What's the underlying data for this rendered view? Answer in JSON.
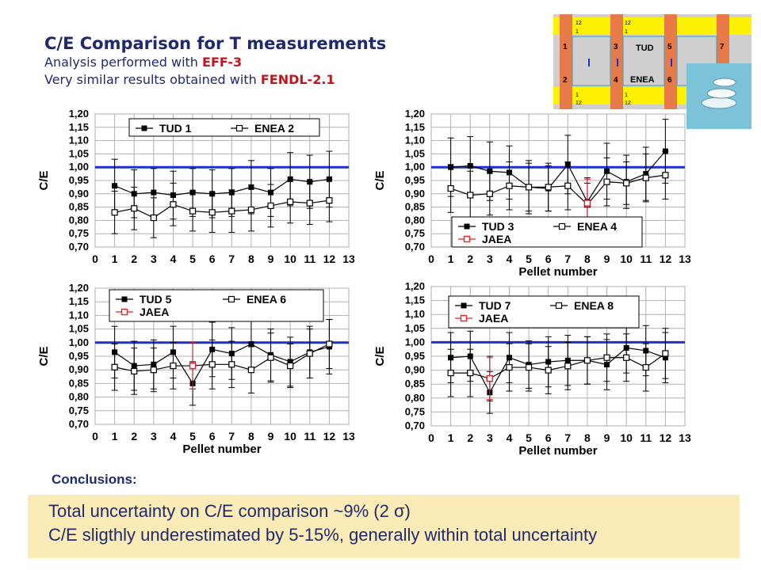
{
  "header": {
    "title": "C/E Comparison for T measurements",
    "line1_prefix": "Analysis performed with ",
    "line1_highlight": "EFF-3",
    "line2_prefix": "Very similar results obtained with  ",
    "line2_highlight": "FENDL-2.1"
  },
  "decoration": {
    "grid_numbers": [
      "12",
      "1",
      "12",
      "1",
      "1",
      "3",
      "5",
      "7",
      "2",
      "4",
      "6",
      "1",
      "12",
      "1",
      "12"
    ],
    "tud_label": "TUD",
    "enea_label": "ENEA",
    "colors": {
      "yellow": "#fff200",
      "orange": "#e87a4a",
      "gray": "#cfcfcf",
      "teal": "#2fa4c0"
    }
  },
  "conclusions": {
    "title": "Conclusions:",
    "line1": "Total uncertainty on C/E comparison ~9% (2 σ)",
    "line2": "C/E sligthly underestimated by 5-15%, generally within total uncertainty"
  },
  "colors": {
    "reference_line": "#1d2fd6",
    "jaea": "#e8242e",
    "series": "#000000",
    "title": "#1f2a6e",
    "highlight": "#c0151c",
    "box": "#fbecb7"
  },
  "chart_data": [
    {
      "type": "line",
      "ylabel": "C/E",
      "xlabel": "",
      "ylim": [
        0.7,
        1.2
      ],
      "xlim": [
        0,
        13
      ],
      "yticks": [
        "0,70",
        "0,75",
        "0,80",
        "0,85",
        "0,90",
        "0,95",
        "1,00",
        "1,05",
        "1,10",
        "1,15",
        "1,20"
      ],
      "xticks": [
        "0",
        "1",
        "2",
        "3",
        "4",
        "5",
        "6",
        "7",
        "8",
        "9",
        "10",
        "11",
        "12",
        "13"
      ],
      "reference_y": 1.0,
      "legend_position": "top",
      "series": [
        {
          "name": "TUD 1",
          "marker": "filled-square",
          "x": [
            1,
            2,
            3,
            4,
            5,
            6,
            7,
            8,
            9,
            10,
            11,
            12
          ],
          "y": [
            0.93,
            0.9,
            0.905,
            0.895,
            0.905,
            0.9,
            0.905,
            0.925,
            0.905,
            0.955,
            0.945,
            0.955
          ],
          "err": [
            0.1,
            0.09,
            0.09,
            0.09,
            0.09,
            0.09,
            0.09,
            0.1,
            0.09,
            0.1,
            0.1,
            0.105
          ]
        },
        {
          "name": "ENEA 2",
          "marker": "open-square",
          "x": [
            1,
            2,
            3,
            4,
            5,
            6,
            7,
            8,
            9,
            10,
            11,
            12
          ],
          "y": [
            0.83,
            0.845,
            0.81,
            0.86,
            0.835,
            0.83,
            0.835,
            0.84,
            0.855,
            0.87,
            0.865,
            0.875
          ],
          "err": [
            0.08,
            0.08,
            0.075,
            0.08,
            0.075,
            0.075,
            0.08,
            0.08,
            0.08,
            0.08,
            0.08,
            0.08
          ]
        }
      ]
    },
    {
      "type": "line",
      "ylabel": "C/E",
      "xlabel": "Pellet number",
      "ylim": [
        0.7,
        1.2
      ],
      "xlim": [
        0,
        13
      ],
      "yticks": [
        "0,70",
        "0,75",
        "0,80",
        "0,85",
        "0,90",
        "0,95",
        "1,00",
        "1,05",
        "1,10",
        "1,15",
        "1,20"
      ],
      "xticks": [
        "0",
        "1",
        "2",
        "3",
        "4",
        "5",
        "6",
        "7",
        "8",
        "9",
        "10",
        "11",
        "12",
        "13"
      ],
      "reference_y": 1.0,
      "legend_position": "bottom",
      "series": [
        {
          "name": "TUD 3",
          "marker": "filled-square",
          "x": [
            1,
            2,
            3,
            4,
            5,
            6,
            7,
            8,
            9,
            10,
            11,
            12
          ],
          "y": [
            1.0,
            1.005,
            0.985,
            0.98,
            0.925,
            0.92,
            1.01,
            0.87,
            0.985,
            0.945,
            0.975,
            1.06
          ],
          "err": [
            0.11,
            0.11,
            0.11,
            0.1,
            0.1,
            0.085,
            0.11,
            0.09,
            0.105,
            0.1,
            0.1,
            0.12
          ]
        },
        {
          "name": "ENEA 4",
          "marker": "open-square",
          "x": [
            1,
            2,
            3,
            4,
            5,
            6,
            7,
            8,
            9,
            10,
            11,
            12
          ],
          "y": [
            0.92,
            0.895,
            0.9,
            0.93,
            0.925,
            0.925,
            0.93,
            0.86,
            0.945,
            0.94,
            0.96,
            0.97
          ],
          "err": [
            0.09,
            0.09,
            0.08,
            0.09,
            0.09,
            0.09,
            0.09,
            0.08,
            0.09,
            0.08,
            0.09,
            0.09
          ]
        },
        {
          "name": "JAEA",
          "marker": "red-open-square",
          "x": [
            8
          ],
          "y": [
            0.865
          ],
          "err": [
            0.09
          ]
        }
      ]
    },
    {
      "type": "line",
      "ylabel": "C/E",
      "xlabel": "Pellet number",
      "ylim": [
        0.7,
        1.2
      ],
      "xlim": [
        0,
        13
      ],
      "yticks": [
        "0,70",
        "0,75",
        "0,80",
        "0,85",
        "0,90",
        "0,95",
        "1,00",
        "1,05",
        "1,10",
        "1,15",
        "1,20"
      ],
      "xticks": [
        "0",
        "1",
        "2",
        "3",
        "4",
        "5",
        "6",
        "7",
        "8",
        "9",
        "10",
        "11",
        "12",
        "13"
      ],
      "reference_y": 1.0,
      "legend_position": "top",
      "series": [
        {
          "name": "TUD 5",
          "marker": "filled-square",
          "x": [
            1,
            2,
            3,
            4,
            5,
            6,
            7,
            8,
            9,
            10,
            11,
            12
          ],
          "y": [
            0.965,
            0.915,
            0.92,
            0.965,
            0.85,
            0.975,
            0.96,
            0.995,
            0.955,
            0.93,
            0.965,
            0.985
          ],
          "err": [
            0.095,
            0.09,
            0.09,
            0.095,
            0.08,
            0.1,
            0.095,
            0.1,
            0.095,
            0.09,
            0.095,
            0.1
          ]
        },
        {
          "name": "ENEA 6",
          "marker": "open-square",
          "x": [
            1,
            2,
            3,
            4,
            5,
            6,
            7,
            8,
            9,
            10,
            11,
            12
          ],
          "y": [
            0.91,
            0.895,
            0.9,
            0.915,
            0.915,
            0.92,
            0.92,
            0.9,
            0.945,
            0.915,
            0.96,
            0.995
          ],
          "err": [
            0.085,
            0.085,
            0.08,
            0.085,
            0.085,
            0.09,
            0.085,
            0.085,
            0.09,
            0.08,
            0.09,
            0.09
          ]
        },
        {
          "name": "JAEA",
          "marker": "red-open-square",
          "x": [
            5
          ],
          "y": [
            0.915
          ],
          "err": [
            0.085
          ]
        }
      ]
    },
    {
      "type": "line",
      "ylabel": "C/E",
      "xlabel": "Pellet number",
      "ylim": [
        0.7,
        1.2
      ],
      "xlim": [
        0,
        13
      ],
      "yticks": [
        "0,70",
        "0,75",
        "0,80",
        "0,85",
        "0,90",
        "0,95",
        "1,00",
        "1,05",
        "1,10",
        "1,15",
        "1,20"
      ],
      "xticks": [
        "0",
        "1",
        "2",
        "3",
        "4",
        "5",
        "6",
        "7",
        "8",
        "9",
        "10",
        "11",
        "12",
        "13"
      ],
      "reference_y": 1.0,
      "legend_position": "top",
      "series": [
        {
          "name": "TUD 7",
          "marker": "filled-square",
          "x": [
            1,
            2,
            3,
            4,
            5,
            6,
            7,
            8,
            9,
            10,
            11,
            12
          ],
          "y": [
            0.945,
            0.95,
            0.82,
            0.945,
            0.92,
            0.93,
            0.935,
            0.935,
            0.92,
            0.98,
            0.97,
            0.945
          ],
          "err": [
            0.09,
            0.09,
            0.075,
            0.09,
            0.085,
            0.09,
            0.09,
            0.085,
            0.09,
            0.09,
            0.09,
            0.09
          ]
        },
        {
          "name": "ENEA 8",
          "marker": "open-square",
          "x": [
            1,
            2,
            3,
            4,
            5,
            6,
            7,
            8,
            9,
            10,
            11,
            12
          ],
          "y": [
            0.89,
            0.89,
            0.87,
            0.91,
            0.91,
            0.9,
            0.915,
            0.935,
            0.945,
            0.945,
            0.91,
            0.96
          ],
          "err": [
            0.085,
            0.085,
            0.08,
            0.085,
            0.085,
            0.085,
            0.085,
            0.085,
            0.085,
            0.085,
            0.085,
            0.09
          ]
        },
        {
          "name": "JAEA",
          "marker": "red-open-square",
          "x": [
            3
          ],
          "y": [
            0.87
          ],
          "err": [
            0.075
          ]
        }
      ]
    }
  ]
}
